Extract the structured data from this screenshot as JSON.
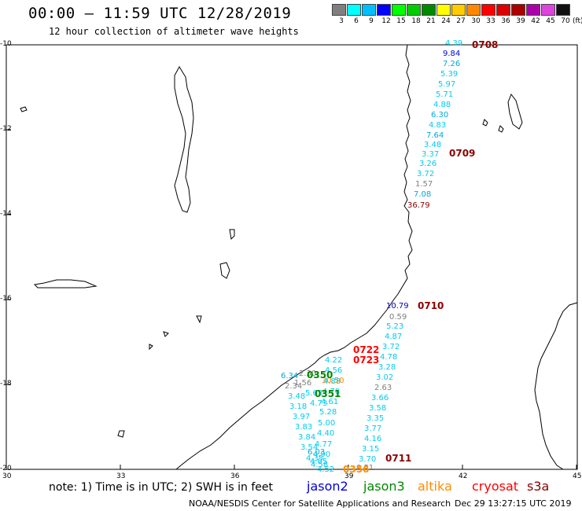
{
  "header": {
    "title": "00:00 – 11:59 UTC 12/28/2019",
    "subtitle": "12 hour collection of altimeter wave heights"
  },
  "color_scale": {
    "unit": "(ft)",
    "bins": [
      {
        "label": "3",
        "color": "#7f7f7f"
      },
      {
        "label": "6",
        "color": "#00ffff"
      },
      {
        "label": "9",
        "color": "#00bfff"
      },
      {
        "label": "12",
        "color": "#0000ff"
      },
      {
        "label": "15",
        "color": "#00ff00"
      },
      {
        "label": "18",
        "color": "#00cc00"
      },
      {
        "label": "21",
        "color": "#008800"
      },
      {
        "label": "24",
        "color": "#ffff00"
      },
      {
        "label": "27",
        "color": "#ffcc00"
      },
      {
        "label": "30",
        "color": "#ff8800"
      },
      {
        "label": "33",
        "color": "#ff0000"
      },
      {
        "label": "36",
        "color": "#dd0000"
      },
      {
        "label": "39",
        "color": "#aa0000"
      },
      {
        "label": "42",
        "color": "#aa00aa"
      },
      {
        "label": "45",
        "color": "#dd44dd"
      },
      {
        "label": "70",
        "color": "#111111"
      }
    ]
  },
  "axes": {
    "lat_labels": [
      "-10",
      "-12",
      "-14",
      "-16",
      "-18",
      "-20"
    ],
    "lon_labels": [
      "30",
      "33",
      "36",
      "39",
      "42",
      "45"
    ]
  },
  "pass_times": [
    {
      "label": "0708",
      "color": "#8b0000"
    },
    {
      "label": "0709",
      "color": "#8b0000"
    },
    {
      "label": "0710",
      "color": "#8b0000"
    },
    {
      "label": "0722",
      "color": "#ff0000"
    },
    {
      "label": "0723",
      "color": "#ff0000"
    },
    {
      "label": "0711",
      "color": "#8b0000"
    },
    {
      "label": "0350",
      "color": "#008800"
    },
    {
      "label": "0351",
      "color": "#008800"
    },
    {
      "label": "0356",
      "color": "#ff8c00"
    }
  ],
  "wave_values": {
    "track_east": [
      "4.39",
      "9.84",
      "7.26",
      "5.39",
      "5.97",
      "5.71",
      "4.88",
      "6.30",
      "4.83",
      "7.64",
      "3.48",
      "3.37",
      "3.26",
      "3.72",
      "1.57",
      "7.08",
      "36.79"
    ],
    "track_mid": [
      "10.79",
      "0.59",
      "5.23",
      "4.87",
      "3.72",
      "4.78",
      "3.28",
      "3.02",
      "2.63",
      "3.66",
      "3.58",
      "3.35",
      "3.77",
      "4.16",
      "3.15",
      "3.70"
    ],
    "track_sw_a": [
      "4.22",
      "4.56",
      "4.88",
      "4.78",
      "4.61",
      "5.28",
      "5.00",
      "4.40",
      "4.77",
      "4.90",
      "4.58"
    ],
    "track_sw_b": [
      "6.34",
      "2.34",
      "3.48",
      "3.18",
      "3.97",
      "3.83",
      "3.84",
      "3.54",
      "4.35",
      "4.52"
    ],
    "track_misc": [
      "2.30",
      "1.56",
      "5.63",
      "4.73",
      "30.50",
      "6.03",
      "4.05",
      "0.51"
    ]
  },
  "note": "note: 1) Time is in UTC; 2) SWH is in feet",
  "satellites": [
    {
      "name": "jason2",
      "color": "#0000dd"
    },
    {
      "name": "jason3",
      "color": "#008800"
    },
    {
      "name": "altika",
      "color": "#ff8c00"
    },
    {
      "name": "cryosat",
      "color": "#ff0000"
    },
    {
      "name": "s3a",
      "color": "#8b0000"
    }
  ],
  "footer": {
    "credit": "NOAA/NESDIS Center for Satellite Applications and Research",
    "timestamp": "Dec 29 13:27:15 UTC 2019"
  }
}
